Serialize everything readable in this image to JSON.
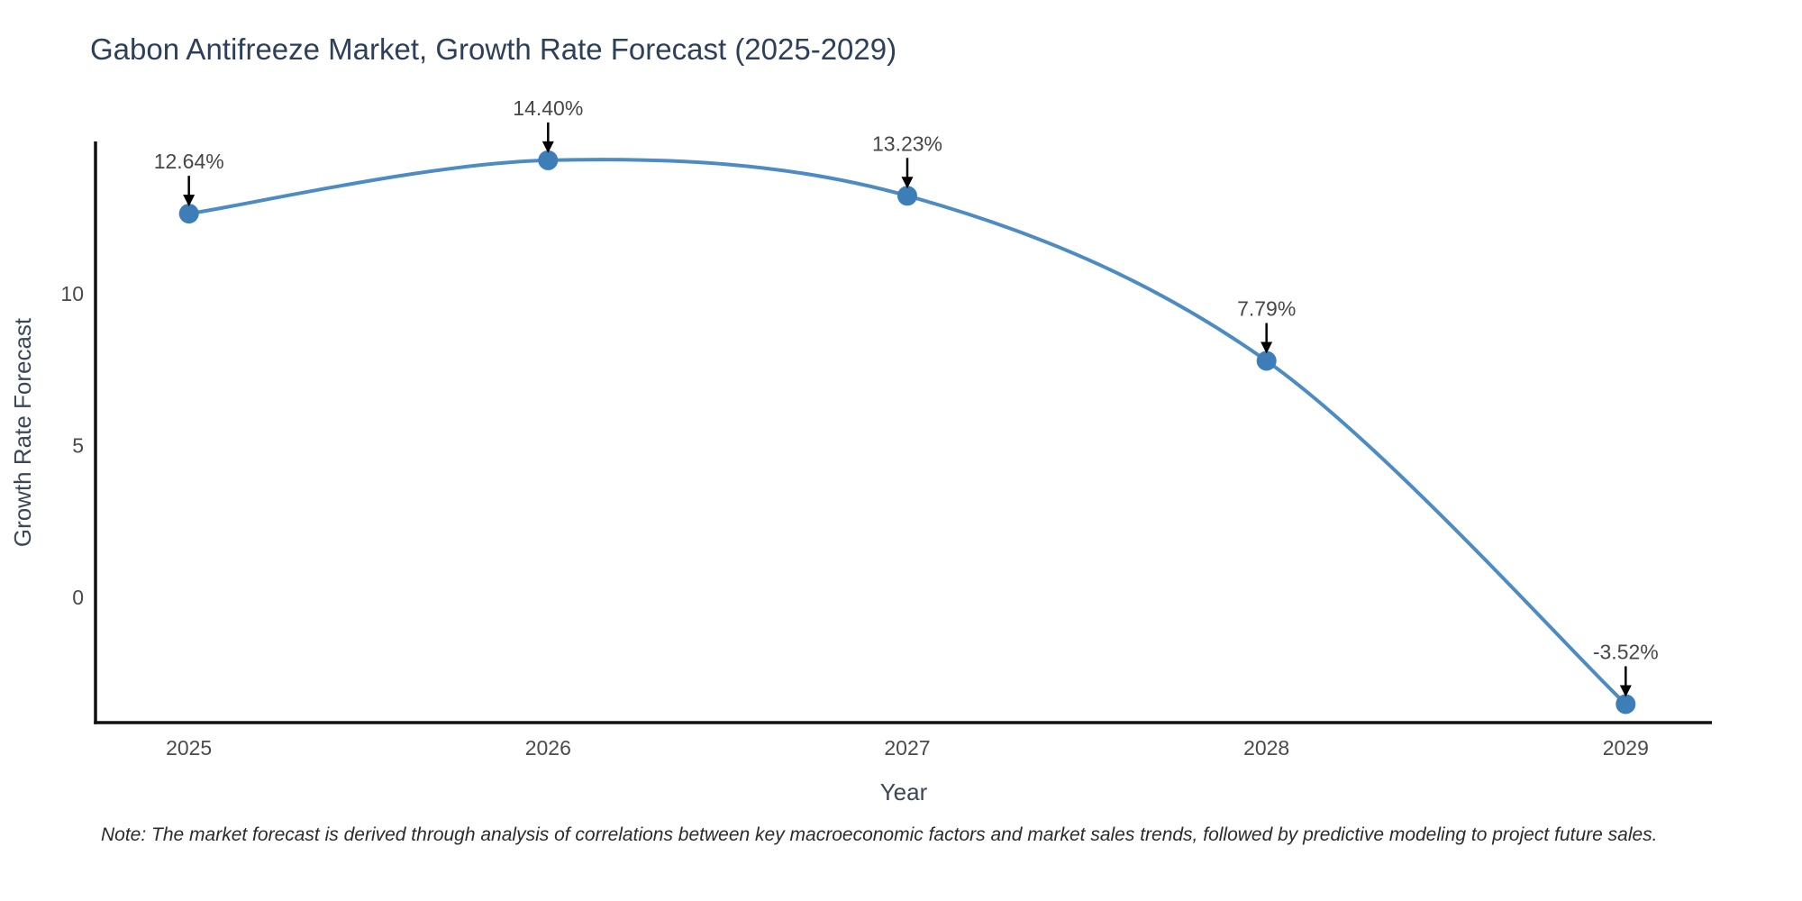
{
  "title": "Gabon Antifreeze Market, Growth Rate Forecast (2025-2029)",
  "note": "Note: The market forecast is derived through analysis of correlations between key macroeconomic factors and market sales trends, followed by predictive modeling to project future sales.",
  "chart_data": {
    "type": "line",
    "title": "Gabon Antifreeze Market, Growth Rate Forecast (2025-2029)",
    "xlabel": "Year",
    "ylabel": "Growth Rate Forecast",
    "x": [
      2025,
      2026,
      2027,
      2028,
      2029
    ],
    "values": [
      12.64,
      14.4,
      13.23,
      7.79,
      -3.52
    ],
    "point_labels": [
      "12.64%",
      "14.40%",
      "13.23%",
      "7.79%",
      "-3.52%"
    ],
    "xticks": [
      2025,
      2026,
      2027,
      2028,
      2029
    ],
    "xtick_labels": [
      "2025",
      "2026",
      "2027",
      "2028",
      "2029"
    ],
    "yticks": [
      0,
      5,
      10
    ],
    "ytick_labels": [
      "0",
      "5",
      "10"
    ],
    "xlim": [
      2024.74,
      2029.24
    ],
    "ylim": [
      -4.13,
      14.96
    ],
    "grid": false,
    "legend": "none",
    "line_shape": "spline",
    "colors": {
      "line": "#4d8cc3",
      "marker": "#3d7db8",
      "axis": "#111111",
      "annotation_arrow": "#000000"
    }
  }
}
